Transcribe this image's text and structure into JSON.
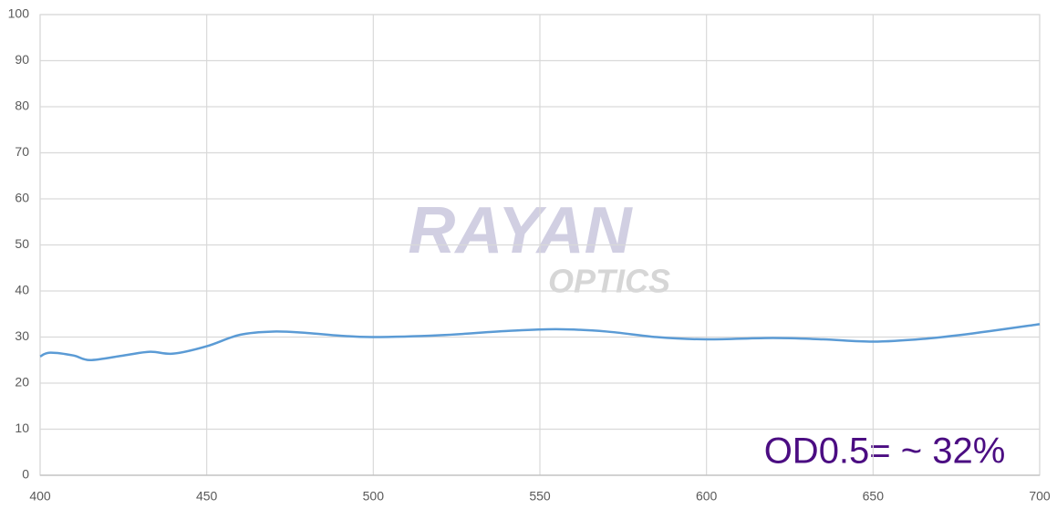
{
  "chart_data": {
    "type": "line",
    "x": [
      400,
      403,
      410,
      415,
      425,
      433,
      440,
      450,
      460,
      470,
      480,
      490,
      500,
      520,
      540,
      555,
      570,
      585,
      600,
      620,
      635,
      650,
      665,
      680,
      700
    ],
    "series": [
      {
        "color": "#5b9bd5",
        "values": [
          25.8,
          26.6,
          26.0,
          25.0,
          26.0,
          26.8,
          26.4,
          28.0,
          30.5,
          31.2,
          30.9,
          30.3,
          30.0,
          30.4,
          31.3,
          31.7,
          31.2,
          30.0,
          29.5,
          29.8,
          29.5,
          29.0,
          29.6,
          30.8,
          32.8
        ]
      }
    ],
    "xlim": [
      400,
      700
    ],
    "xticks": [
      400,
      450,
      500,
      550,
      600,
      650,
      700
    ],
    "ylim": [
      0,
      100
    ],
    "yticks": [
      0,
      10,
      20,
      30,
      40,
      50,
      60,
      70,
      80,
      90,
      100
    ],
    "grid": true,
    "annotation": "OD0.5= ~ 32%",
    "watermark": [
      "RAYAN",
      "OPTICS"
    ]
  }
}
